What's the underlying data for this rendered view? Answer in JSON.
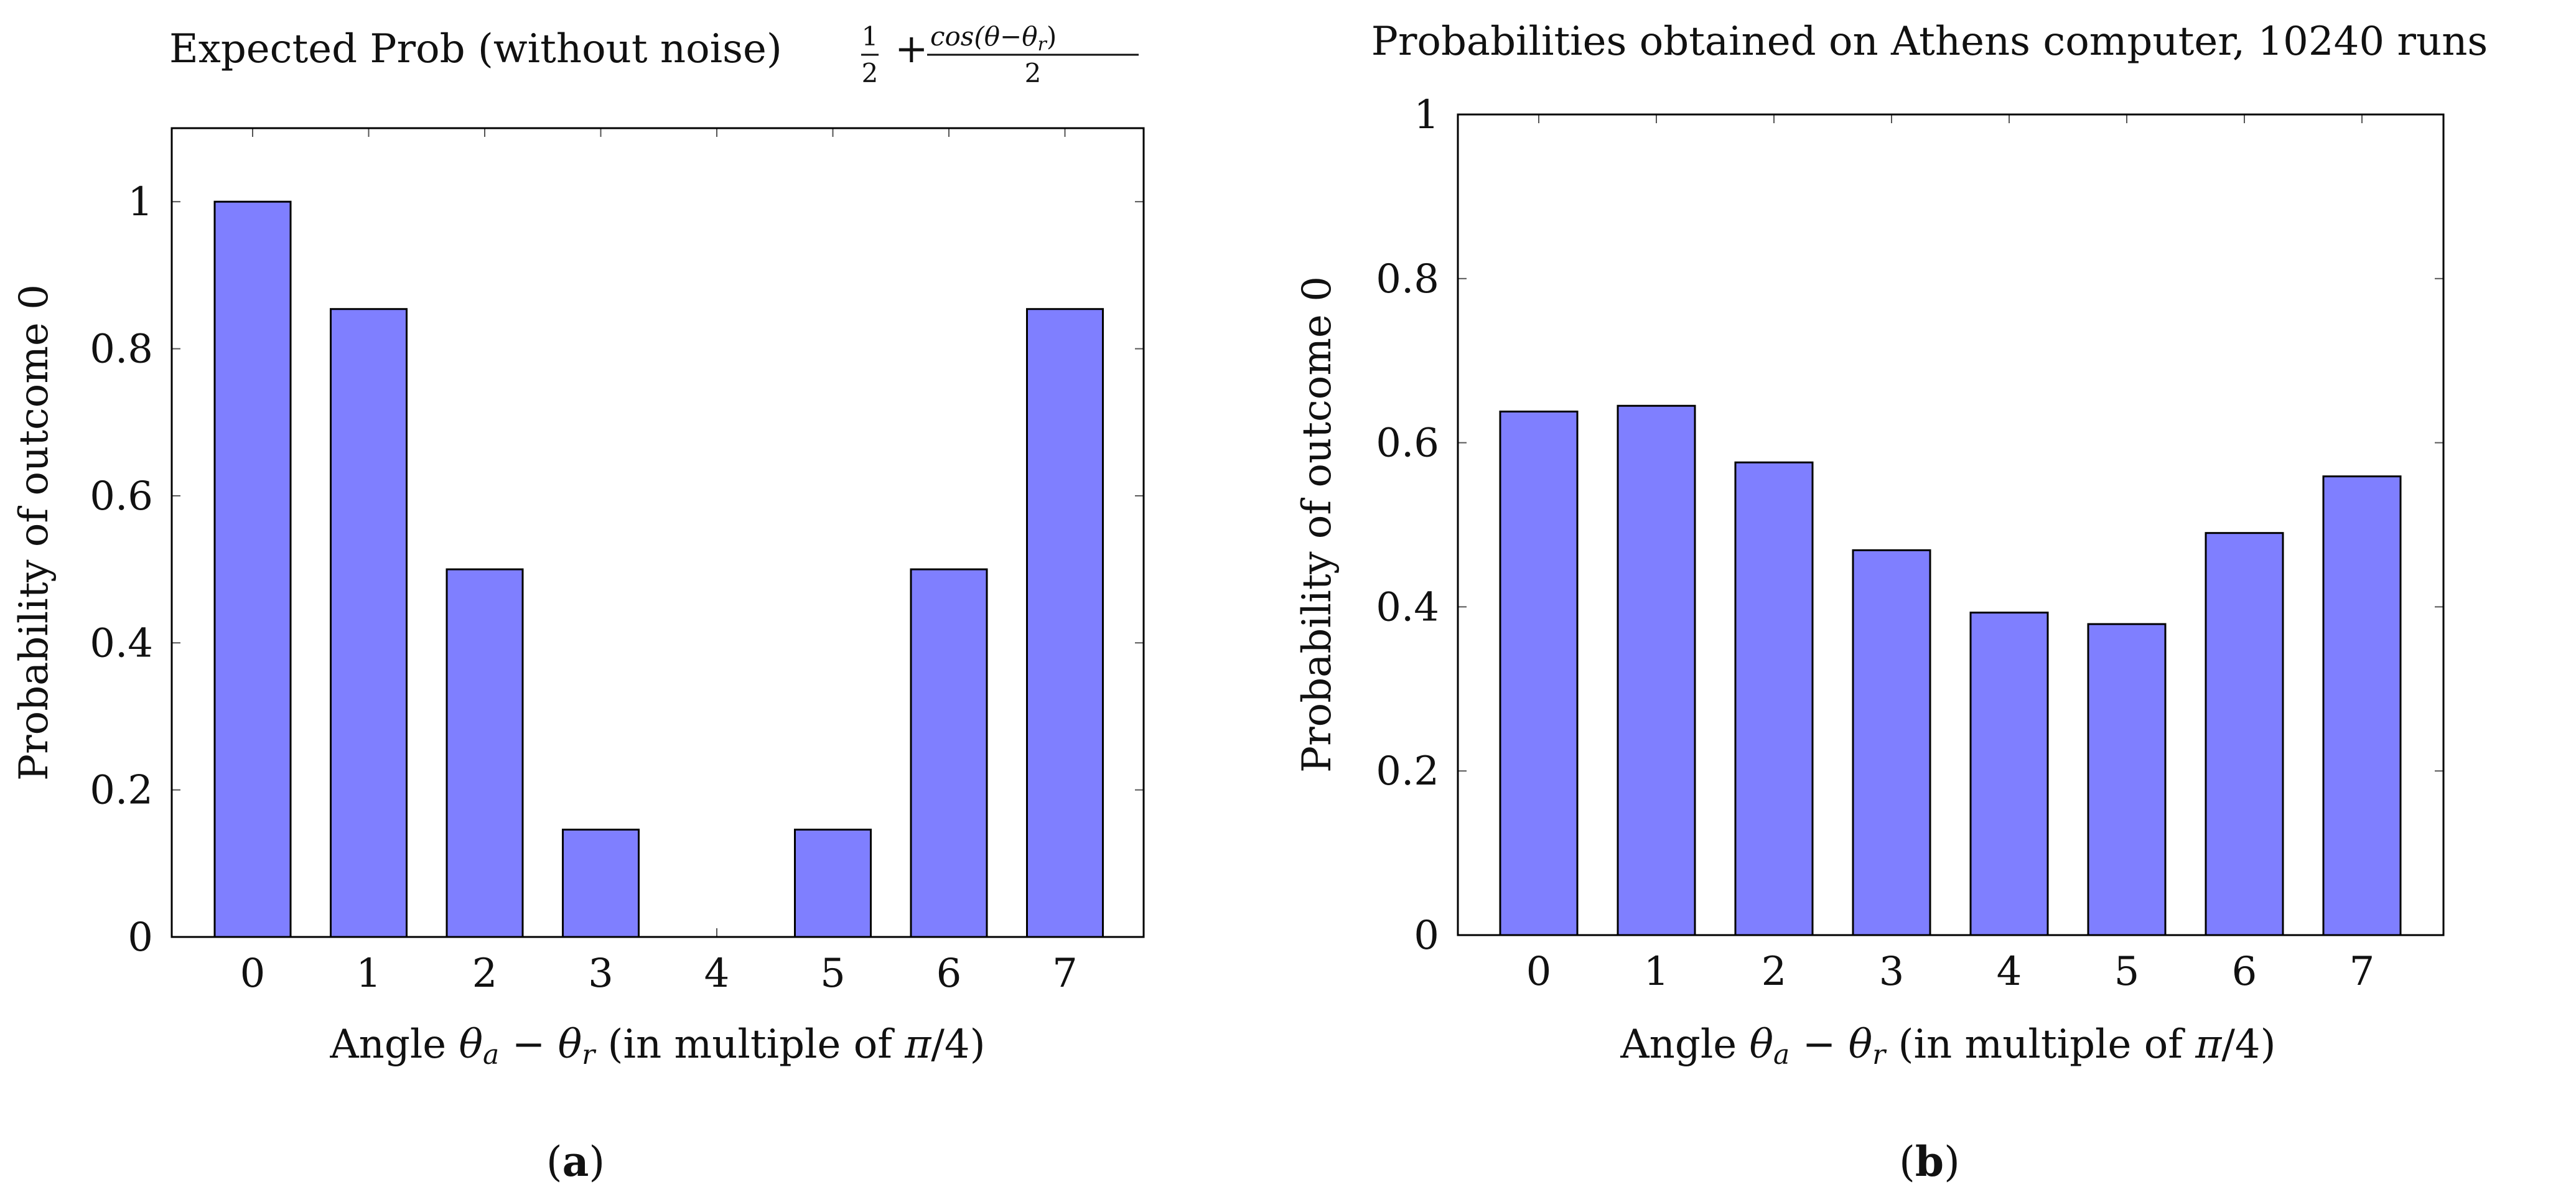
{
  "chart_data": [
    {
      "type": "bar",
      "title": "Expected Prob (without noise)",
      "formula": {
        "plus": "+",
        "frac1_num": "1",
        "frac1_den": "2",
        "frac2_num": "cos(θ−θ",
        "frac2_num_sub": "r",
        "frac2_num_end": ")",
        "frac2_den": "2"
      },
      "categories": [
        "0",
        "1",
        "2",
        "3",
        "4",
        "5",
        "6",
        "7"
      ],
      "values": [
        1.0,
        0.854,
        0.5,
        0.146,
        0.0,
        0.146,
        0.5,
        0.854
      ],
      "ylim": [
        0,
        1.1
      ],
      "yticks": [
        0,
        0.2,
        0.4,
        0.6,
        0.8,
        1
      ],
      "ytick_labels": [
        "0",
        "0.2",
        "0.4",
        "0.6",
        "0.8",
        "1"
      ],
      "xlabel": "Angle θa − θr (in multiple of π/4)",
      "ylabel": "Probability of outcome 0",
      "caption": "(a)",
      "caption_open": "(",
      "caption_letter": "a",
      "caption_close": ")",
      "bar_color": "#7f7fff"
    },
    {
      "type": "bar",
      "title": "Probabilities obtained on Athens computer, 10240 runs",
      "categories": [
        "0",
        "1",
        "2",
        "3",
        "4",
        "5",
        "6",
        "7"
      ],
      "values": [
        0.638,
        0.645,
        0.576,
        0.469,
        0.393,
        0.379,
        0.49,
        0.559
      ],
      "ylim": [
        0,
        1
      ],
      "yticks": [
        0,
        0.2,
        0.4,
        0.6,
        0.8,
        1
      ],
      "ytick_labels": [
        "0",
        "0.2",
        "0.4",
        "0.6",
        "0.8",
        "1"
      ],
      "xlabel": "Angle θa − θr (in multiple of π/4)",
      "ylabel": "Probability of outcome 0",
      "caption": "(b)",
      "caption_open": "(",
      "caption_letter": "b",
      "caption_close": ")",
      "bar_color": "#7f7fff"
    }
  ],
  "axis_text": {
    "xlabel_prefix": "Angle ",
    "theta": "θ",
    "sub_a": "a",
    "minus": " − ",
    "sub_r": "r",
    "xlabel_suffix": " (in multiple of ",
    "pi": "π",
    "xlabel_end": "/4)"
  }
}
